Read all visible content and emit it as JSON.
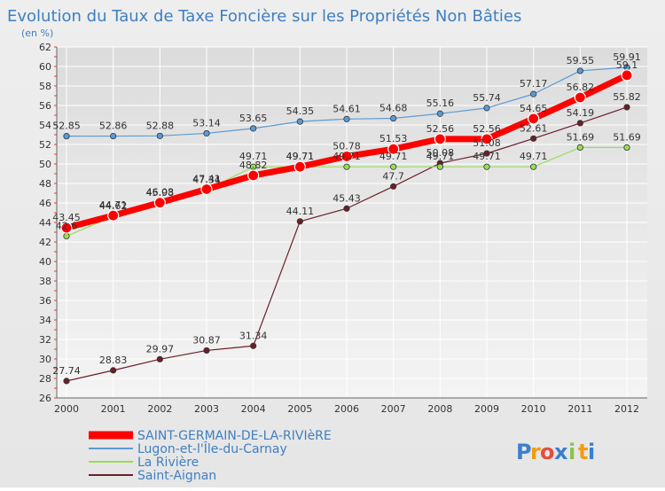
{
  "chart_data": {
    "type": "line",
    "title": "Evolution du Taux de Taxe Foncière sur les Propriétés Non Bâties",
    "unit_label": "(en %)",
    "categories": [
      "2000",
      "2001",
      "2002",
      "2003",
      "2004",
      "2005",
      "2006",
      "2007",
      "2008",
      "2009",
      "2010",
      "2011",
      "2012"
    ],
    "ylim": [
      26,
      62
    ],
    "yticks": [
      26,
      28,
      30,
      32,
      34,
      36,
      38,
      40,
      42,
      44,
      46,
      48,
      50,
      52,
      54,
      56,
      58,
      60,
      62
    ],
    "grid": true,
    "legend_position": "bottom-left",
    "series": [
      {
        "name": "SAINT-GERMAIN-DE-LA-RIVIèRE",
        "color": "#ff0000",
        "values": [
          43.45,
          44.71,
          46.03,
          47.41,
          48.82,
          49.71,
          50.78,
          51.53,
          52.56,
          52.56,
          54.65,
          56.82,
          59.1
        ],
        "labels": [
          "43.45",
          "44.71",
          "46.03",
          "47.41",
          "48.82",
          "49.71",
          "50.78",
          "51.53",
          "52.56",
          "52.56",
          "54.65",
          "56.82",
          "59.1"
        ]
      },
      {
        "name": "Lugon-et-l'Île-du-Carnay",
        "color": "#5b9bd5",
        "values": [
          52.85,
          52.86,
          52.88,
          53.14,
          53.65,
          54.35,
          54.61,
          54.68,
          55.16,
          55.74,
          57.17,
          59.55,
          59.91
        ],
        "labels": [
          "52.85",
          "52.86",
          "52.88",
          "53.14",
          "53.65",
          "54.35",
          "54.61",
          "54.68",
          "55.16",
          "55.74",
          "57.17",
          "59.55",
          "59.91"
        ]
      },
      {
        "name": "La Rivière",
        "color": "#99dd55",
        "values": [
          42.6,
          44.62,
          45.98,
          47.34,
          49.71,
          49.71,
          49.71,
          49.71,
          49.71,
          49.71,
          49.71,
          51.69,
          51.69
        ],
        "labels": [
          "42.6",
          "44.62",
          "45.98",
          "47.34",
          "49.71",
          "49.71",
          "49.71",
          "49.71",
          "49.71",
          "49.71",
          "49.71",
          "51.69",
          "51.69"
        ]
      },
      {
        "name": "Saint-Aignan",
        "color": "#6b1f2a",
        "values": [
          27.74,
          28.83,
          29.97,
          30.87,
          31.34,
          44.11,
          45.43,
          47.7,
          50.08,
          51.08,
          52.61,
          54.19,
          55.82
        ],
        "labels": [
          "27.74",
          "28.83",
          "29.97",
          "30.87",
          "31.34",
          "44.11",
          "45.43",
          "47.7",
          "50.08",
          "51.08",
          "52.61",
          "54.19",
          "55.82"
        ]
      }
    ]
  },
  "brand": {
    "letters": [
      "P",
      "r",
      "o",
      "x",
      "i",
      "t",
      "i"
    ],
    "colors": [
      "#3a7fd0",
      "#f39c12",
      "#e74c3c",
      "#3a7fd0",
      "#8bc34a",
      "#f39c12",
      "#3a7fd0"
    ]
  }
}
